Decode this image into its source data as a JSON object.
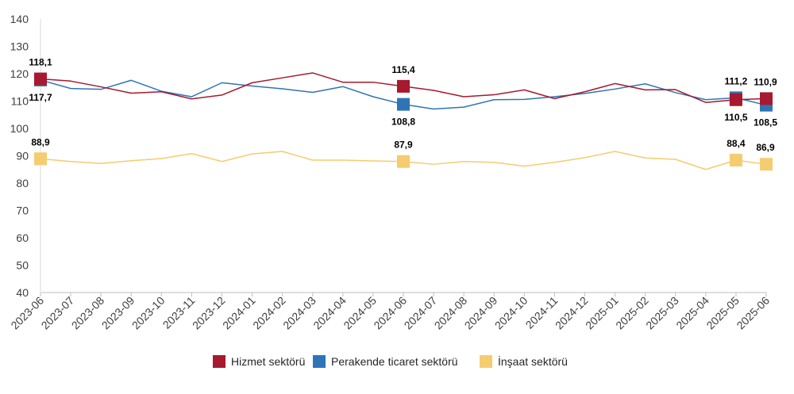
{
  "chart_data": {
    "type": "line",
    "title": "",
    "xlabel": "",
    "ylabel": "",
    "ylim": [
      40,
      140
    ],
    "yticks": [
      40,
      50,
      60,
      70,
      80,
      90,
      100,
      110,
      120,
      130,
      140
    ],
    "grid": false,
    "legend_position": "bottom",
    "categories": [
      "2023-06",
      "2023-07",
      "2023-08",
      "2023-09",
      "2023-10",
      "2023-11",
      "2023-12",
      "2024-01",
      "2024-02",
      "2024-03",
      "2024-04",
      "2024-05",
      "2024-06",
      "2024-07",
      "2024-08",
      "2024-09",
      "2024-10",
      "2024-11",
      "2024-12",
      "2025-01",
      "2025-02",
      "2025-03",
      "2025-04",
      "2025-05",
      "2025-06"
    ],
    "series": [
      {
        "name": "Hizmet sektörü",
        "color": "#a6192e",
        "values": [
          118.1,
          117.3,
          115.2,
          112.9,
          113.4,
          110.8,
          112.2,
          116.7,
          118.5,
          120.3,
          116.9,
          116.9,
          115.4,
          113.9,
          111.6,
          112.3,
          114.1,
          110.9,
          113.4,
          116.4,
          114.1,
          114.2,
          109.5,
          110.5,
          110.9
        ],
        "markers": [
          0,
          12,
          23,
          24
        ],
        "labels": {
          "0": "118,1",
          "12": "115,4",
          "23": "110,5",
          "24": "110,9"
        },
        "label_pos": {
          "0": "above",
          "12": "above",
          "23": "below",
          "24": "above"
        }
      },
      {
        "name": "Perakende ticaret sektörü",
        "color": "#2e75b6",
        "values": [
          117.7,
          114.6,
          114.3,
          117.6,
          113.6,
          111.6,
          116.7,
          115.5,
          114.5,
          113.2,
          115.3,
          111.6,
          108.8,
          107.1,
          107.8,
          110.5,
          110.6,
          111.6,
          112.8,
          114.4,
          116.3,
          113.1,
          110.5,
          111.2,
          108.5
        ],
        "markers": [
          0,
          12,
          23,
          24
        ],
        "labels": {
          "0": "117,7",
          "12": "108,8",
          "23": "111,2",
          "24": "108,5"
        },
        "label_pos": {
          "0": "below",
          "12": "below",
          "23": "above",
          "24": "below"
        }
      },
      {
        "name": "İnşaat sektörü",
        "color": "#f5cc6f",
        "values": [
          88.9,
          87.9,
          87.2,
          88.2,
          89.0,
          90.8,
          87.9,
          90.7,
          91.6,
          88.4,
          88.4,
          88.1,
          87.9,
          86.9,
          87.9,
          87.6,
          86.2,
          87.6,
          89.3,
          91.6,
          89.2,
          88.7,
          85.0,
          88.4,
          86.9
        ],
        "markers": [
          0,
          12,
          23,
          24
        ],
        "labels": {
          "0": "88,9",
          "12": "87,9",
          "23": "88,4",
          "24": "86,9"
        },
        "label_pos": {
          "0": "above",
          "12": "above",
          "23": "above",
          "24": "above"
        }
      }
    ]
  }
}
